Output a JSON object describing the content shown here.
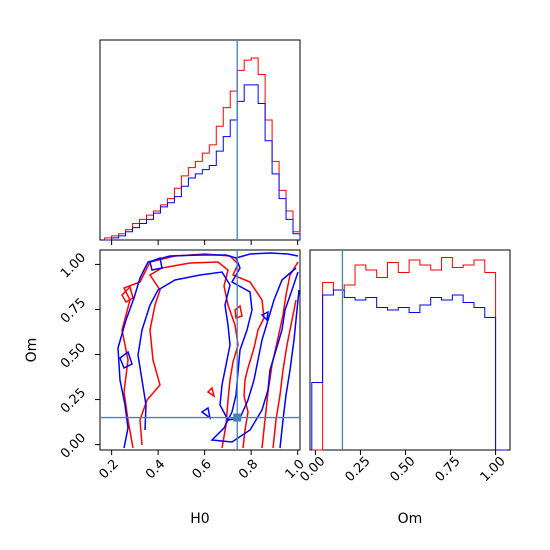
{
  "chart_data": {
    "type": "corner",
    "parameters": [
      "H0",
      "Om"
    ],
    "truth": {
      "H0": 0.74,
      "Om": 0.15
    },
    "truth_color": "#4682b4",
    "colors": {
      "red": "#ff0000",
      "blue": "#0000ff",
      "truth": "#4682b4"
    },
    "panels": {
      "hist_H0": {
        "type": "histogram",
        "xlim": [
          0.15,
          1.01
        ],
        "bin_edges": [
          0.17,
          0.2,
          0.23,
          0.26,
          0.29,
          0.32,
          0.35,
          0.38,
          0.41,
          0.44,
          0.47,
          0.5,
          0.53,
          0.56,
          0.59,
          0.62,
          0.65,
          0.68,
          0.71,
          0.74,
          0.77,
          0.8,
          0.83,
          0.86,
          0.89,
          0.92,
          0.95,
          0.98,
          1.01
        ],
        "series": [
          {
            "color": "red",
            "values": [
              1,
              2,
              3,
              5,
              8,
              10,
              12,
              14,
              17,
              20,
              25,
              31,
              35,
              38,
              42,
              46,
              55,
              64,
              72,
              82,
              87,
              88,
              80,
              58,
              38,
              24,
              14,
              4
            ]
          },
          {
            "color": "blue",
            "values": [
              0,
              1,
              2,
              4,
              6,
              8,
              10,
              13,
              16,
              18,
              21,
              26,
              30,
              32,
              34,
              36,
              43,
              50,
              58,
              67,
              75,
              75,
              66,
              48,
              32,
              20,
              10,
              3
            ]
          }
        ],
        "xticks": [
          0.2,
          0.4,
          0.6,
          0.8,
          1.0
        ]
      },
      "hist_Om": {
        "type": "histogram",
        "xlim": [
          -0.03,
          1.08
        ],
        "bin_edges": [
          -0.02,
          0.04,
          0.1,
          0.16,
          0.22,
          0.28,
          0.34,
          0.4,
          0.46,
          0.52,
          0.58,
          0.64,
          0.7,
          0.76,
          0.82,
          0.88,
          0.94,
          1.0,
          1.06
        ],
        "series": [
          {
            "color": "red",
            "values": [
              0,
              0.67,
              0.64,
              0.66,
              0.74,
              0.72,
              0.69,
              0.75,
              0.71,
              0.76,
              0.74,
              0.72,
              0.77,
              0.73,
              0.74,
              0.76,
              0.71,
              0.0
            ]
          },
          {
            "color": "blue",
            "values": [
              0.27,
              0.62,
              0.64,
              0.61,
              0.6,
              0.61,
              0.57,
              0.56,
              0.57,
              0.55,
              0.58,
              0.61,
              0.6,
              0.62,
              0.59,
              0.57,
              0.53,
              0.0
            ]
          }
        ],
        "xtick_labels": [
          "0.00",
          "0.25",
          "0.50",
          "0.75",
          "1.00"
        ]
      },
      "contour_H0_Om": {
        "type": "contour",
        "xlabel": "H0",
        "ylabel": "Om",
        "xlim": [
          0.15,
          1.01
        ],
        "ylim": [
          -0.03,
          1.08
        ],
        "xtick_labels": [
          "0.2",
          "0.4",
          "0.6",
          "0.8",
          "1.0"
        ],
        "ytick_labels": [
          "0.00",
          "0.25",
          "0.50",
          "0.75",
          "1.00"
        ]
      }
    }
  }
}
